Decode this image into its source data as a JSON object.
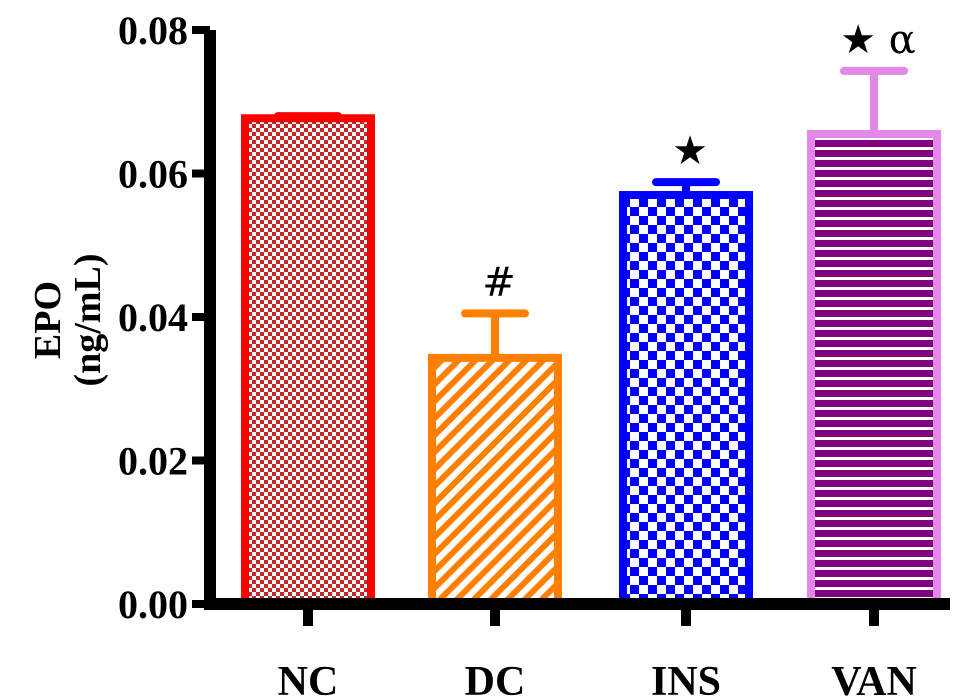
{
  "chart_data": {
    "type": "bar",
    "title": "",
    "xlabel": "",
    "ylabel": "EPO",
    "ylabel_units": "(ng/mL)",
    "ylim": [
      0,
      0.08
    ],
    "yticks": [
      "0.00",
      "0.02",
      "0.04",
      "0.06",
      "0.08"
    ],
    "ytick_values": [
      0,
      0.02,
      0.04,
      0.06,
      0.08
    ],
    "categories": [
      "NC",
      "DC",
      "INS",
      "VAN"
    ],
    "values": [
      0.0677,
      0.0343,
      0.057,
      0.0655
    ],
    "errors": [
      0.0003,
      0.0062,
      0.0018,
      0.0088
    ],
    "annotations": [
      "",
      "#",
      "★",
      "★ α"
    ],
    "colors": [
      "#ff0000",
      "#ff8000",
      "#0000ff",
      "#e387e8"
    ],
    "fill_colors": [
      "#b22222",
      "#ff8000",
      "#0000ff",
      "#800080"
    ],
    "patterns": [
      "checker-fine",
      "diagonal",
      "checker",
      "horizontal"
    ],
    "grid": false,
    "legend": "none"
  }
}
